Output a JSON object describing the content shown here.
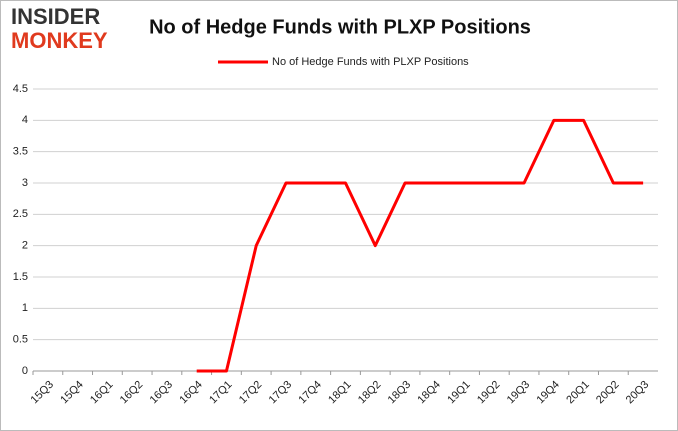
{
  "logo": {
    "line1": "INSIDER",
    "line2": "MONKEY"
  },
  "chart_data": {
    "type": "line",
    "title": "No of Hedge Funds with PLXP Positions",
    "categories": [
      "15Q3",
      "15Q4",
      "16Q1",
      "16Q2",
      "16Q3",
      "16Q4",
      "17Q1",
      "17Q2",
      "17Q3",
      "17Q4",
      "18Q1",
      "18Q2",
      "18Q3",
      "18Q4",
      "19Q1",
      "19Q2",
      "19Q3",
      "19Q4",
      "20Q1",
      "20Q2",
      "20Q3"
    ],
    "series": [
      {
        "name": "No of Hedge Funds with PLXP Positions",
        "color": "#ff0000",
        "values": [
          null,
          null,
          null,
          null,
          null,
          0,
          0,
          2,
          3,
          3,
          3,
          2,
          3,
          3,
          3,
          3,
          3,
          4,
          4,
          3,
          3
        ]
      }
    ],
    "ylim": [
      0,
      4.5
    ],
    "yticks": [
      0,
      0.5,
      1,
      1.5,
      2,
      2.5,
      3,
      3.5,
      4,
      4.5
    ],
    "grid": true,
    "legend": "top"
  }
}
